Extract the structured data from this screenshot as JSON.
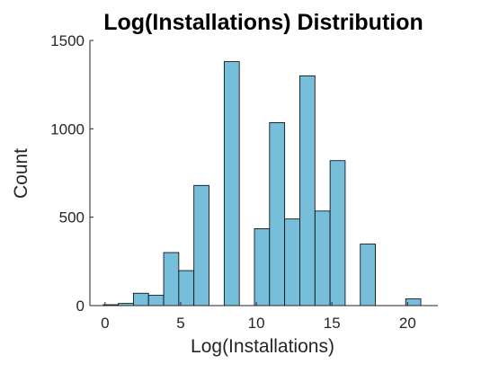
{
  "chart_data": {
    "type": "bar",
    "title": "Log(Installations) Distribution",
    "xlabel": "Log(Installations)",
    "ylabel": "Count",
    "xlim": [
      -1,
      22
    ],
    "ylim": [
      0,
      1500
    ],
    "xticks": [
      0,
      5,
      10,
      15,
      20
    ],
    "yticks": [
      0,
      500,
      1000,
      1500
    ],
    "bar_color": "#77bedb",
    "grid": false,
    "bins": [
      {
        "x0": -0.125,
        "x1": 0.875,
        "value": 5
      },
      {
        "x0": 0.875,
        "x1": 1.875,
        "value": 12
      },
      {
        "x0": 1.875,
        "x1": 2.875,
        "value": 70
      },
      {
        "x0": 2.875,
        "x1": 3.875,
        "value": 58
      },
      {
        "x0": 3.875,
        "x1": 4.875,
        "value": 300
      },
      {
        "x0": 4.875,
        "x1": 5.875,
        "value": 198
      },
      {
        "x0": 5.875,
        "x1": 6.875,
        "value": 680
      },
      {
        "x0": 6.875,
        "x1": 7.875,
        "value": 0
      },
      {
        "x0": 7.875,
        "x1": 8.875,
        "value": 1380
      },
      {
        "x0": 8.875,
        "x1": 9.875,
        "value": 0
      },
      {
        "x0": 9.875,
        "x1": 10.875,
        "value": 435
      },
      {
        "x0": 10.875,
        "x1": 11.875,
        "value": 1035
      },
      {
        "x0": 11.875,
        "x1": 12.875,
        "value": 490
      },
      {
        "x0": 12.875,
        "x1": 13.875,
        "value": 1300
      },
      {
        "x0": 13.875,
        "x1": 14.875,
        "value": 535
      },
      {
        "x0": 14.875,
        "x1": 15.875,
        "value": 820
      },
      {
        "x0": 15.875,
        "x1": 16.875,
        "value": 0
      },
      {
        "x0": 16.875,
        "x1": 17.875,
        "value": 348
      },
      {
        "x0": 17.875,
        "x1": 18.875,
        "value": 0
      },
      {
        "x0": 18.875,
        "x1": 19.875,
        "value": 0
      },
      {
        "x0": 19.875,
        "x1": 20.875,
        "value": 38
      }
    ]
  }
}
